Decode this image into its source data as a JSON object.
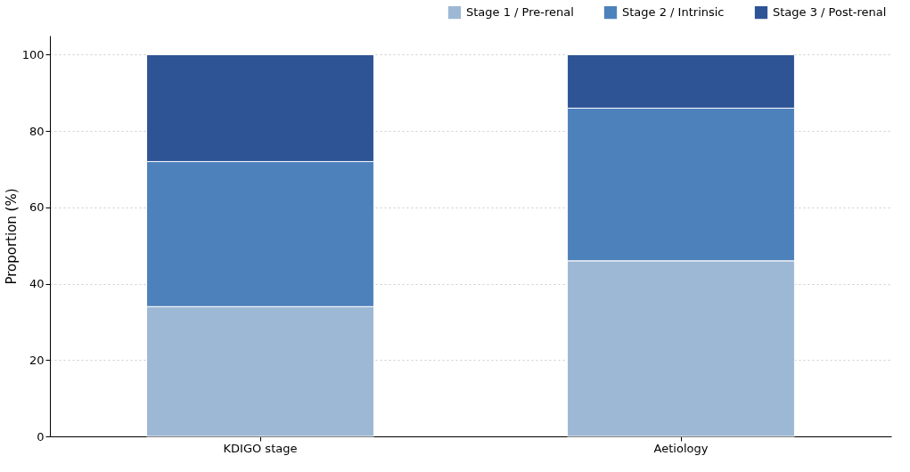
{
  "chart_data": {
    "type": "bar",
    "stacked": true,
    "ylabel": "Proportion (%)",
    "categories": [
      "KDIGO stage",
      "Aetiology"
    ],
    "series": [
      {
        "name": "Stage 1 / Pre-renal",
        "color": "#9db8d4",
        "values": [
          34,
          46
        ]
      },
      {
        "name": "Stage 2 / Intrinsic",
        "color": "#4d81bc",
        "values": [
          38,
          40
        ]
      },
      {
        "name": "Stage 3 / Post-renal",
        "color": "#2e5496",
        "values": [
          28,
          14
        ]
      }
    ],
    "ylim": [
      0,
      105
    ],
    "yticks": [
      0,
      20,
      40,
      60,
      80,
      100
    ],
    "grid": "y",
    "legend": "top right"
  }
}
